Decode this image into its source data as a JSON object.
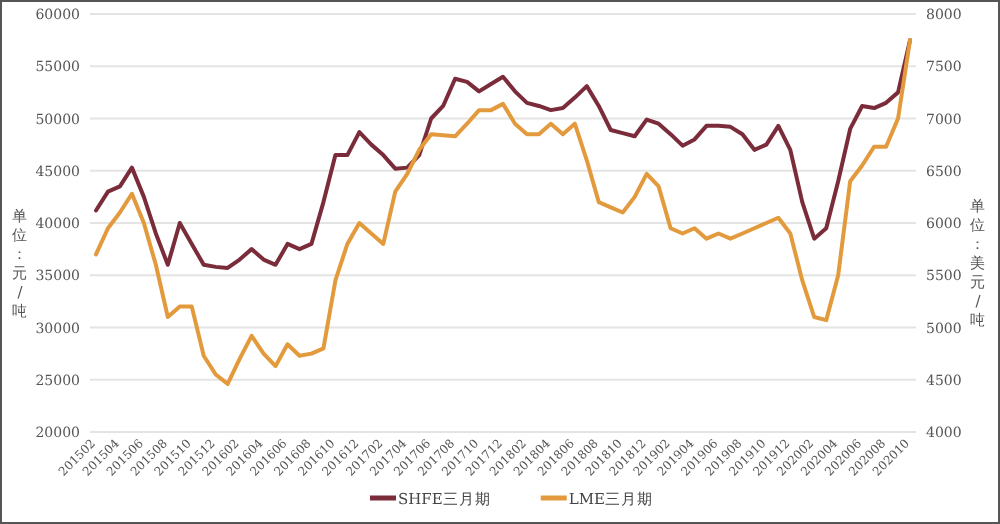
{
  "chart_data": {
    "type": "line",
    "ylabel": "单位：元/吨",
    "y2label": "单位：美元/吨",
    "categories": [
      "201502",
      null,
      "201504",
      null,
      "201506",
      null,
      "201508",
      null,
      "201510",
      null,
      "201512",
      null,
      "201602",
      null,
      "201604",
      null,
      "201606",
      null,
      "201608",
      null,
      "201610",
      null,
      "201612",
      null,
      "201702",
      null,
      "201704",
      null,
      "201706",
      null,
      "201708",
      null,
      "201710",
      null,
      "201712",
      null,
      "201802",
      null,
      "201804",
      null,
      "201806",
      null,
      "201808",
      null,
      "201810",
      null,
      "201812",
      null,
      "201902",
      null,
      "201904",
      null,
      "201906",
      null,
      "201908",
      null,
      "201910",
      null,
      "201912",
      null,
      "202002",
      null,
      "202004",
      null,
      "202006",
      null,
      "202008",
      null,
      "202010"
    ],
    "series": [
      {
        "name": "SHFE三月期",
        "color": "#7b2c3a",
        "values": [
          41200,
          43000,
          43500,
          45300,
          42500,
          39000,
          36000,
          40000,
          38000,
          36000,
          35800,
          35700,
          36500,
          37500,
          36500,
          36000,
          38000,
          37500,
          38000,
          42000,
          46500,
          46500,
          48700,
          47500,
          46500,
          45200,
          45300,
          46500,
          50000,
          51200,
          53800,
          53500,
          52600,
          53300,
          54000,
          52600,
          51500,
          51200,
          50800,
          51000,
          52000,
          53100,
          51200,
          48900,
          48600,
          48300,
          49900,
          49500,
          48500,
          47400,
          48000,
          49300,
          49300,
          49200,
          48500,
          47000,
          47500,
          49300,
          47000,
          42000,
          38500,
          39500,
          44000,
          49000,
          51200,
          51000,
          51500,
          52500,
          57500
        ]
      },
      {
        "name": "LME三月期",
        "color": "#e39a3c",
        "axis": "y2",
        "values": [
          5700,
          5950,
          6100,
          6280,
          6000,
          5600,
          5100,
          5200,
          5200,
          4730,
          4550,
          4460,
          4700,
          4920,
          4750,
          4630,
          4840,
          4730,
          4750,
          4800,
          5450,
          5800,
          6000,
          5900,
          5800,
          6300,
          6470,
          6700,
          6850,
          6840,
          6830,
          6950,
          7080,
          7080,
          7140,
          6950,
          6850,
          6850,
          6950,
          6850,
          6950,
          6600,
          6200,
          6150,
          6100,
          6250,
          6470,
          6350,
          5950,
          5900,
          5950,
          5850,
          5900,
          5850,
          5900,
          5950,
          6000,
          6050,
          5900,
          5450,
          5100,
          5070,
          5500,
          6400,
          6550,
          6730,
          6730,
          7000,
          7750
        ]
      }
    ],
    "ylim": [
      20000,
      60000
    ],
    "yticks": [
      20000,
      25000,
      30000,
      35000,
      40000,
      45000,
      50000,
      55000,
      60000
    ],
    "y2lim": [
      4000,
      8000
    ],
    "y2ticks": [
      4000,
      4500,
      5000,
      5500,
      6000,
      6500,
      7000,
      7500,
      8000
    ],
    "grid": "y",
    "legend": "bottom"
  }
}
